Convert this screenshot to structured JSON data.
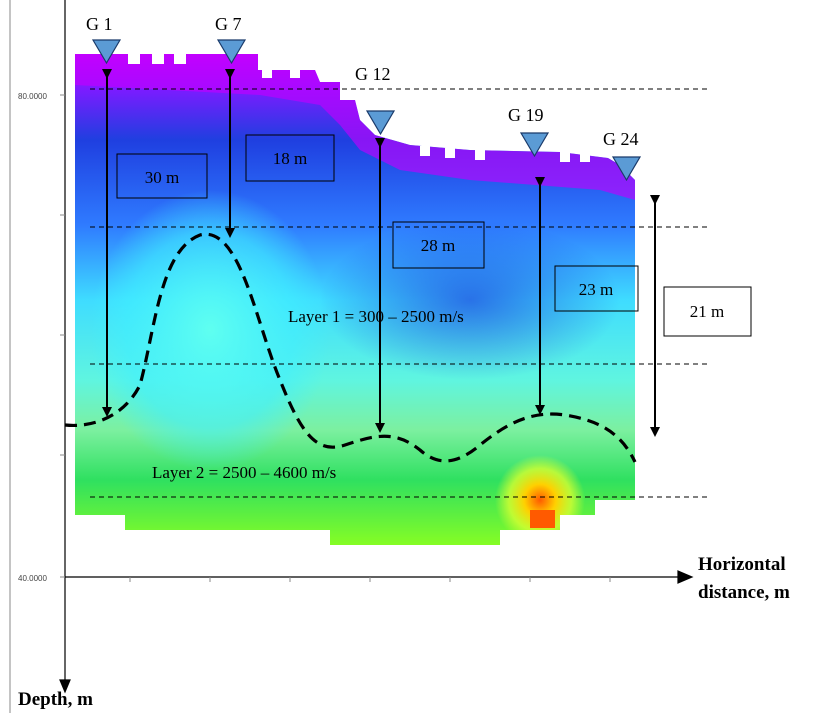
{
  "y_ticks": [
    "80.0000",
    "40.0000"
  ],
  "axes": {
    "x_label_line1": "Horizontal",
    "x_label_line2": "distance, m",
    "y_label": "Depth, m"
  },
  "geophones": [
    "G 1",
    "G 7",
    "G 12",
    "G 19",
    "G 24"
  ],
  "thickness_boxes": [
    "30 m",
    "18 m",
    "28 m",
    "23 m",
    "21 m"
  ],
  "layers": {
    "layer1": "Layer 1 = 300 – 2500 m/s",
    "layer2": "Layer 2 = 2500 – 4600 m/s"
  },
  "colors": {
    "geophone_marker": "#5b9bd5",
    "velocity_low": "#cc00ff",
    "velocity_mid_low": "#1f3fe0",
    "velocity_mid": "#33eeff",
    "velocity_mid_high": "#22dd55",
    "velocity_high": "#ff5a00"
  }
}
